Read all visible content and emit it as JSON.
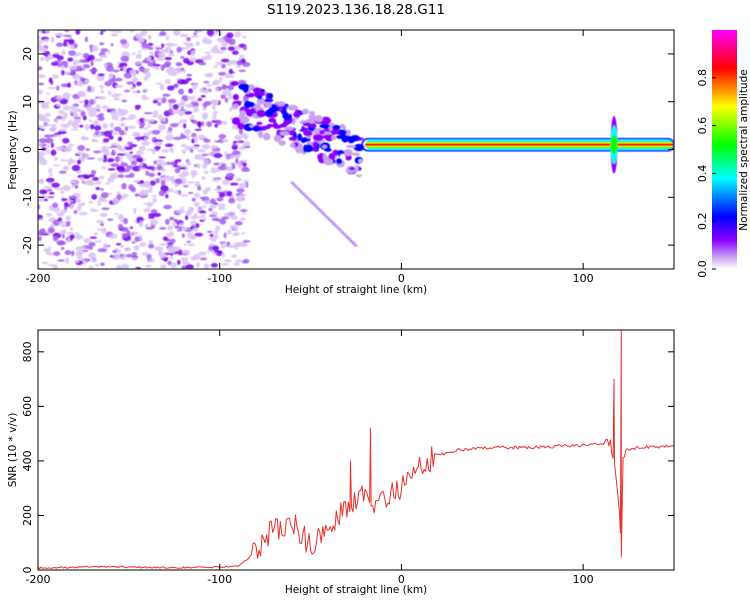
{
  "figure": {
    "title": "S119.2023.136.18.28.G11"
  },
  "chart_data": [
    {
      "type": "heatmap",
      "xlabel": "Height of straight line (km)",
      "ylabel": "Frequency (Hz)",
      "xlim": [
        -200,
        150
      ],
      "ylim": [
        -25,
        25
      ],
      "x_ticks": [
        -200,
        -100,
        0,
        100
      ],
      "y_ticks": [
        -20,
        -10,
        0,
        10,
        20
      ],
      "grid": false,
      "colorbar": {
        "label": "Normalized spectral amplitude",
        "range": [
          0,
          1
        ],
        "ticks": [
          0.0,
          0.2,
          0.4,
          0.6,
          0.8
        ],
        "tick_labels": [
          "0.0",
          "0.2",
          "0.4",
          "0.6",
          "0.8"
        ],
        "colormap": [
          "#ffffff",
          "#c8a2f0",
          "#8b00ff",
          "#0000ff",
          "#00ffff",
          "#00ff00",
          "#ffff00",
          "#ff0000",
          "#ff00ff"
        ]
      },
      "features": [
        {
          "description_region": "noise",
          "x_range": [
            -200,
            -90
          ],
          "y_range": [
            -25,
            25
          ]
        },
        {
          "description_region": "carrier",
          "x_range": [
            -20,
            150
          ],
          "frequency": 1
        }
      ]
    },
    {
      "type": "line",
      "xlabel": "Height of straight line (km)",
      "ylabel": "SNR (10 * v/v)",
      "xlim": [
        -200,
        150
      ],
      "ylim": [
        0,
        880
      ],
      "x_ticks": [
        -200,
        -100,
        0,
        100
      ],
      "y_ticks": [
        0,
        200,
        400,
        600,
        800
      ],
      "grid": false,
      "color": "#e8302c",
      "series": [
        {
          "x": [
            -200,
            -180,
            -160,
            -140,
            -120,
            -100,
            -90,
            -85,
            -80,
            -75,
            -70,
            -65,
            -60,
            -55,
            -50,
            -45,
            -40,
            -35,
            -30,
            -25,
            -20,
            -15,
            -10,
            -5,
            0,
            5,
            10,
            15,
            20,
            25,
            30,
            40,
            50,
            60,
            70,
            80,
            90,
            95,
            100,
            105,
            110,
            115,
            118,
            120,
            121,
            122,
            125,
            130,
            140,
            150
          ],
          "y": [
            8,
            10,
            12,
            10,
            9,
            10,
            15,
            40,
            70,
            120,
            150,
            160,
            180,
            130,
            90,
            130,
            170,
            200,
            230,
            260,
            270,
            250,
            260,
            280,
            300,
            340,
            370,
            400,
            420,
            430,
            440,
            445,
            448,
            450,
            450,
            452,
            455,
            455,
            458,
            460,
            460,
            470,
            350,
            200,
            60,
            420,
            440,
            450,
            452,
            455
          ]
        }
      ],
      "annotations": [
        {
          "x": -28,
          "y": 400
        },
        {
          "x": -17,
          "y": 520
        },
        {
          "x": 117,
          "y": 700
        },
        {
          "x": 121,
          "y": 880
        }
      ]
    }
  ]
}
